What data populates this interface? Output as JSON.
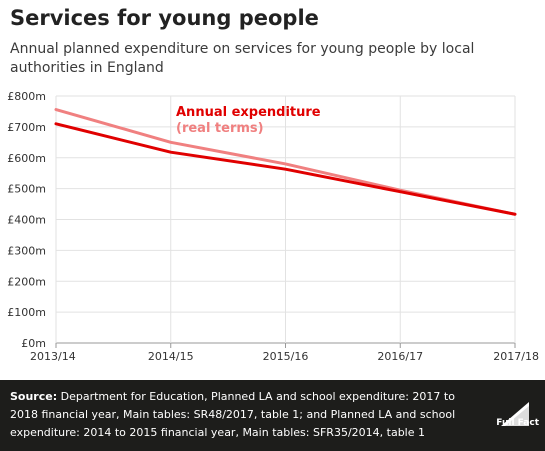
{
  "header": {
    "title": "Services for young people",
    "subtitle": "Annual planned expenditure on services for young people by local authorities in England"
  },
  "chart_data": {
    "type": "line",
    "categories": [
      "2013/14",
      "2014/15",
      "2015/16",
      "2016/17",
      "2017/18"
    ],
    "series": [
      {
        "name": "Annual expenditure",
        "color": "#e00000",
        "values": [
          710,
          618,
          563,
          490,
          417
        ]
      },
      {
        "name": "(real terms)",
        "color": "#f08080",
        "values": [
          756,
          650,
          580,
          495,
          417
        ]
      }
    ],
    "yticks": [
      "£0m",
      "£100m",
      "£200m",
      "£300m",
      "£400m",
      "£500m",
      "£600m",
      "£700m",
      "£800m"
    ],
    "ylim": [
      0,
      800
    ],
    "grid": true
  },
  "footer": {
    "source_label": "Source:",
    "source_text": " Department for Education, Planned LA and school expenditure: 2017 to 2018 financial year, Main tables: SR48/2017, table 1; and Planned LA and school expenditure: 2014 to 2015 financial year, Main tables: SFR35/2014, table 1",
    "logo_text": "Full Fact"
  }
}
